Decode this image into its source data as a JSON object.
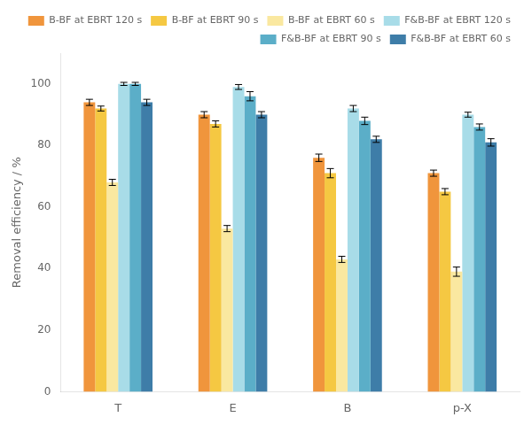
{
  "chart_data": {
    "type": "bar",
    "categories": [
      "T",
      "E",
      "B",
      "p-X"
    ],
    "series": [
      {
        "name": "B-BF at EBRT 120 s",
        "color": "#F0953C",
        "values": [
          94,
          90,
          76,
          71
        ],
        "errors": [
          1.0,
          1.0,
          1.2,
          1.0
        ]
      },
      {
        "name": "B-BF at EBRT 90 s",
        "color": "#F5C842",
        "values": [
          92,
          87,
          71,
          65
        ],
        "errors": [
          0.8,
          1.0,
          1.5,
          1.0
        ]
      },
      {
        "name": "B-BF at EBRT 60 s",
        "color": "#FAE8A0",
        "values": [
          68,
          53,
          43,
          39
        ],
        "errors": [
          1.0,
          1.0,
          1.0,
          1.5
        ]
      },
      {
        "name": "F&B-BF at EBRT 120 s",
        "color": "#A8DCE8",
        "values": [
          100,
          99,
          92,
          90
        ],
        "errors": [
          0.5,
          0.8,
          1.0,
          0.8
        ]
      },
      {
        "name": "F&B-BF at EBRT 90 s",
        "color": "#5BAEC8",
        "values": [
          100,
          96,
          88,
          86
        ],
        "errors": [
          0.5,
          1.5,
          1.2,
          1.0
        ]
      },
      {
        "name": "F&B-BF at EBRT 60 s",
        "color": "#3E7DA8",
        "values": [
          94,
          90,
          82,
          81
        ],
        "errors": [
          1.0,
          1.0,
          1.0,
          1.2
        ]
      }
    ],
    "ylabel": "Removal efficiency / %",
    "ylim": [
      0,
      110
    ],
    "yticks": [
      0,
      20,
      40,
      60,
      80,
      100
    ],
    "grid": false,
    "legend": "upper right"
  }
}
